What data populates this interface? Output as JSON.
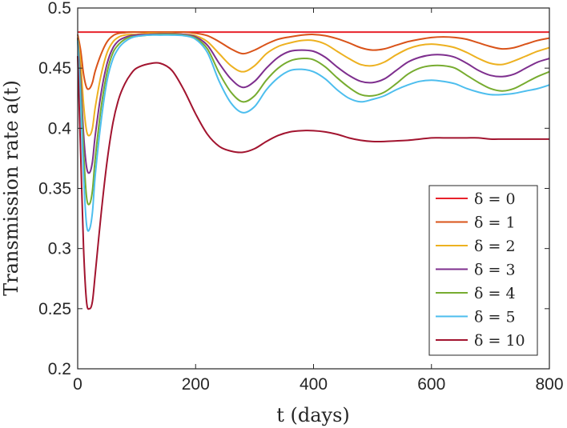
{
  "chart_data": {
    "type": "line",
    "title": "",
    "xlabel": "t (days)",
    "ylabel": "Transmission rate a(t)",
    "xlim": [
      0,
      800
    ],
    "ylim": [
      0.2,
      0.5
    ],
    "xticks": [
      0,
      200,
      400,
      600,
      800
    ],
    "xtick_labels": [
      "0",
      "200",
      "400",
      "600",
      "800"
    ],
    "yticks": [
      0.2,
      0.25,
      0.3,
      0.35,
      0.4,
      0.45,
      0.5
    ],
    "ytick_labels": [
      "0.2",
      "0.25",
      "0.3",
      "0.35",
      "0.4",
      "0.45",
      "0.5"
    ],
    "legend_position": "bottom-right",
    "x": [
      0,
      5,
      10,
      15,
      20,
      25,
      30,
      40,
      50,
      60,
      70,
      80,
      90,
      100,
      120,
      140,
      160,
      180,
      200,
      220,
      240,
      260,
      280,
      300,
      320,
      340,
      360,
      380,
      400,
      420,
      440,
      460,
      480,
      500,
      520,
      540,
      560,
      580,
      600,
      620,
      640,
      660,
      680,
      700,
      720,
      740,
      760,
      780,
      800
    ],
    "series": [
      {
        "name": "δ = 0",
        "color": "#e8222b",
        "values": [
          0.48,
          0.48,
          0.48,
          0.48,
          0.48,
          0.48,
          0.48,
          0.48,
          0.48,
          0.48,
          0.48,
          0.48,
          0.48,
          0.48,
          0.48,
          0.48,
          0.48,
          0.48,
          0.48,
          0.48,
          0.48,
          0.48,
          0.48,
          0.48,
          0.48,
          0.48,
          0.48,
          0.48,
          0.48,
          0.48,
          0.48,
          0.48,
          0.48,
          0.48,
          0.48,
          0.48,
          0.48,
          0.48,
          0.48,
          0.48,
          0.48,
          0.48,
          0.48,
          0.48,
          0.48,
          0.48,
          0.48,
          0.48,
          0.48
        ]
      },
      {
        "name": "δ = 1",
        "color": "#d95319",
        "values": [
          0.478,
          0.465,
          0.445,
          0.434,
          0.433,
          0.438,
          0.448,
          0.462,
          0.472,
          0.477,
          0.479,
          0.4795,
          0.48,
          0.48,
          0.48,
          0.48,
          0.48,
          0.48,
          0.479,
          0.477,
          0.472,
          0.466,
          0.462,
          0.465,
          0.47,
          0.474,
          0.476,
          0.4775,
          0.478,
          0.477,
          0.4745,
          0.471,
          0.467,
          0.465,
          0.466,
          0.469,
          0.472,
          0.474,
          0.4755,
          0.476,
          0.4755,
          0.474,
          0.471,
          0.468,
          0.466,
          0.467,
          0.47,
          0.473,
          0.475
        ]
      },
      {
        "name": "δ = 2",
        "color": "#edb120",
        "values": [
          0.476,
          0.455,
          0.42,
          0.398,
          0.394,
          0.4,
          0.418,
          0.445,
          0.463,
          0.472,
          0.476,
          0.4775,
          0.478,
          0.478,
          0.479,
          0.479,
          0.479,
          0.478,
          0.477,
          0.472,
          0.462,
          0.452,
          0.447,
          0.452,
          0.462,
          0.468,
          0.471,
          0.473,
          0.473,
          0.47,
          0.464,
          0.458,
          0.453,
          0.452,
          0.455,
          0.461,
          0.466,
          0.469,
          0.47,
          0.469,
          0.467,
          0.463,
          0.458,
          0.454,
          0.453,
          0.456,
          0.46,
          0.464,
          0.467
        ]
      },
      {
        "name": "δ = 3",
        "color": "#7e2f8e",
        "values": [
          0.475,
          0.44,
          0.395,
          0.368,
          0.363,
          0.372,
          0.395,
          0.43,
          0.454,
          0.467,
          0.473,
          0.4755,
          0.477,
          0.4775,
          0.478,
          0.4785,
          0.4785,
          0.478,
          0.476,
          0.469,
          0.454,
          0.441,
          0.434,
          0.439,
          0.45,
          0.459,
          0.464,
          0.465,
          0.464,
          0.459,
          0.451,
          0.444,
          0.439,
          0.438,
          0.441,
          0.448,
          0.455,
          0.459,
          0.461,
          0.461,
          0.459,
          0.454,
          0.448,
          0.444,
          0.443,
          0.445,
          0.45,
          0.455,
          0.458
        ]
      },
      {
        "name": "δ = 4",
        "color": "#77ac30",
        "values": [
          0.474,
          0.432,
          0.38,
          0.343,
          0.337,
          0.348,
          0.376,
          0.418,
          0.447,
          0.463,
          0.47,
          0.474,
          0.476,
          0.4765,
          0.4775,
          0.478,
          0.478,
          0.4775,
          0.475,
          0.466,
          0.446,
          0.43,
          0.422,
          0.427,
          0.44,
          0.45,
          0.456,
          0.458,
          0.457,
          0.451,
          0.442,
          0.434,
          0.428,
          0.427,
          0.43,
          0.437,
          0.445,
          0.45,
          0.452,
          0.452,
          0.45,
          0.444,
          0.438,
          0.433,
          0.431,
          0.433,
          0.438,
          0.443,
          0.447
        ]
      },
      {
        "name": "δ = 5",
        "color": "#4dbeee",
        "values": [
          0.473,
          0.422,
          0.36,
          0.32,
          0.316,
          0.33,
          0.362,
          0.407,
          0.44,
          0.458,
          0.467,
          0.472,
          0.475,
          0.4765,
          0.4775,
          0.4775,
          0.4775,
          0.477,
          0.474,
          0.463,
          0.439,
          0.421,
          0.413,
          0.418,
          0.432,
          0.442,
          0.448,
          0.449,
          0.447,
          0.441,
          0.432,
          0.425,
          0.422,
          0.424,
          0.427,
          0.432,
          0.436,
          0.439,
          0.44,
          0.439,
          0.437,
          0.433,
          0.43,
          0.428,
          0.428,
          0.429,
          0.431,
          0.433,
          0.436
        ]
      },
      {
        "name": "δ = 10",
        "color": "#a2142f",
        "values": [
          0.46,
          0.38,
          0.3,
          0.256,
          0.25,
          0.256,
          0.28,
          0.33,
          0.373,
          0.405,
          0.425,
          0.437,
          0.445,
          0.45,
          0.4535,
          0.454,
          0.448,
          0.432,
          0.412,
          0.395,
          0.385,
          0.381,
          0.38,
          0.383,
          0.389,
          0.394,
          0.397,
          0.398,
          0.398,
          0.397,
          0.395,
          0.392,
          0.39,
          0.389,
          0.389,
          0.3895,
          0.39,
          0.391,
          0.392,
          0.392,
          0.392,
          0.392,
          0.392,
          0.391,
          0.391,
          0.391,
          0.391,
          0.391,
          0.391
        ]
      }
    ]
  }
}
